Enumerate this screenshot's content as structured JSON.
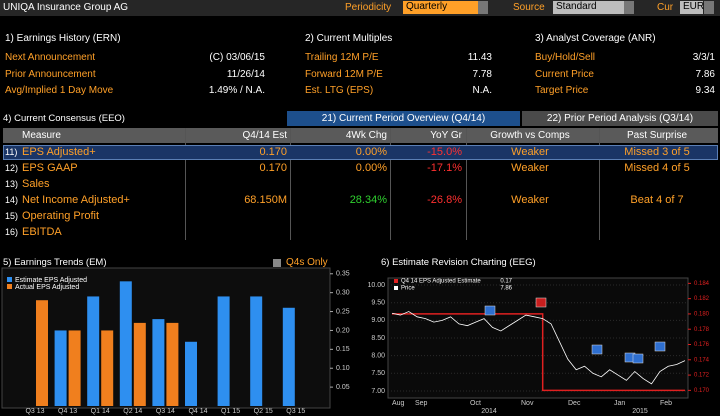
{
  "header": {
    "title": "UNIQA Insurance Group AG",
    "periodicity_label": "Periodicity",
    "periodicity": "Quarterly",
    "source_label": "Source",
    "source": "Standard",
    "cur_label": "Cur",
    "cur": "EUR"
  },
  "panels": [
    {
      "title": "1) Earnings History (ERN)",
      "rows": [
        [
          "Next Announcement",
          "(C) 03/06/15"
        ],
        [
          "Prior Announcement",
          "11/26/14"
        ],
        [
          "Avg/Implied 1 Day Move",
          "1.49% / N.A."
        ]
      ]
    },
    {
      "title": "2) Current Multiples",
      "rows": [
        [
          "Trailing 12M P/E",
          "11.43"
        ],
        [
          "Forward 12M P/E",
          "7.78"
        ],
        [
          "Est. LTG (EPS)",
          "N.A."
        ]
      ]
    },
    {
      "title": "3) Analyst Coverage (ANR)",
      "rows": [
        [
          "Buy/Hold/Sell",
          "3/3/1"
        ],
        [
          "Current Price",
          "7.86"
        ],
        [
          "Target Price",
          "9.34"
        ]
      ]
    }
  ],
  "consensus": {
    "title": "4) Current Consensus (EEO)",
    "tabs": [
      "21) Current Period Overview (Q4/14)",
      "22) Prior Period Analysis (Q3/14)"
    ],
    "columns": [
      "Measure",
      "Q4/14 Est",
      "4Wk Chg",
      "YoY Gr",
      "Growth vs Comps",
      "Past Surprise"
    ],
    "rows": [
      {
        "num": "11)",
        "measure": "EPS Adjusted+",
        "est": "0.170",
        "chg": "0.00%",
        "yoy": "-15.0%",
        "comps": "Weaker",
        "surprise": "Missed 3 of 5"
      },
      {
        "num": "12)",
        "measure": "EPS GAAP",
        "est": "0.170",
        "chg": "0.00%",
        "yoy": "-17.1%",
        "comps": "Weaker",
        "surprise": "Missed 4 of 5"
      },
      {
        "num": "13)",
        "measure": "Sales"
      },
      {
        "num": "14)",
        "measure": "Net Income Adjusted+",
        "est": "68.150M",
        "chg": "28.34%",
        "yoy": "-26.8%",
        "comps": "Weaker",
        "surprise": "Beat 4 of 7"
      },
      {
        "num": "15)",
        "measure": "Operating Profit"
      },
      {
        "num": "16)",
        "measure": "EBITDA"
      }
    ]
  },
  "earnings_trends": {
    "type": "bar",
    "title": "5) Earnings Trends (EM)",
    "toggle": "Q4s Only",
    "categories": [
      "Q3 13",
      "Q4 13",
      "Q1 14",
      "Q2 14",
      "Q3 14",
      "Q4 14",
      "Q1 15",
      "Q2 15",
      "Q3 15"
    ],
    "series": [
      {
        "name": "Estimate EPS Adjusted",
        "color": "#2e8ff0",
        "values": [
          null,
          0.2,
          0.29,
          0.33,
          0.23,
          0.17,
          0.29,
          0.29,
          0.26
        ]
      },
      {
        "name": "Actual EPS Adjusted",
        "color": "#f07f1e",
        "values": [
          0.28,
          0.2,
          0.2,
          0.22,
          0.22,
          null,
          null,
          null,
          null
        ]
      }
    ],
    "ylim": [
      0,
      0.36
    ],
    "yticks": [
      0.05,
      {
        "value": 0.1,
        "label": "0.10"
      },
      0.15,
      {
        "value": 0.2,
        "label": "0.20"
      },
      0.25,
      {
        "value": 0.3,
        "label": "0.30"
      },
      0.35
    ]
  },
  "revision": {
    "type": "line",
    "title": "6) Estimate Revision Charting (EEG)",
    "months": [
      "Aug",
      "Sep",
      "Oct",
      "Nov",
      "Dec",
      "Jan",
      "Feb"
    ],
    "years": [
      "2014",
      "2015"
    ],
    "series": [
      {
        "name": "Q4 14 EPS Adjusted Estimate",
        "last": "0.17",
        "color": "#e02020",
        "axis": "y2",
        "values": [
          0.18,
          0.18,
          0.18,
          0.18,
          0.18,
          0.18,
          0.18,
          0.18,
          0.18,
          0.18,
          0.18,
          0.18,
          0.18,
          0.18,
          0.18,
          0.18,
          0.18,
          0.18,
          0.17,
          0.17,
          0.17,
          0.17,
          0.17,
          0.17,
          0.17,
          0.17,
          0.17,
          0.17,
          0.17,
          0.17,
          0.17,
          0.17,
          0.17,
          0.17,
          0.17,
          0.17
        ]
      },
      {
        "name": "Price",
        "last": "7.86",
        "color": "#ffffff",
        "values": [
          9.2,
          9.15,
          9.25,
          9.1,
          9.05,
          8.95,
          9.0,
          9.1,
          8.9,
          8.85,
          8.95,
          9.05,
          8.8,
          8.7,
          8.85,
          9.0,
          9.15,
          9.1,
          9.05,
          8.9,
          8.4,
          7.9,
          7.6,
          7.7,
          7.5,
          7.4,
          7.6,
          7.45,
          7.3,
          7.55,
          7.35,
          7.2,
          7.55,
          7.7,
          7.75,
          7.86
        ]
      }
    ],
    "ylim": [
      6.8,
      10.2
    ],
    "yticks": [
      {
        "value": 7,
        "label": "7.00"
      },
      {
        "value": 7.5,
        "label": "7.50"
      },
      {
        "value": 8,
        "label": "8.00"
      },
      {
        "value": 8.5,
        "label": "8.50"
      },
      {
        "value": 9,
        "label": "9.00"
      },
      {
        "value": 9.5,
        "label": "9.50"
      },
      {
        "value": 10,
        "label": "10.00"
      }
    ],
    "y2lim": [
      0.169,
      0.1847
    ],
    "y2ticks": [
      {
        "value": 0.17,
        "label": "0.170"
      },
      {
        "value": 0.172,
        "label": "0.172"
      },
      {
        "value": 0.174,
        "label": "0.174"
      },
      {
        "value": 0.176,
        "label": "0.176"
      },
      {
        "value": 0.178,
        "label": "0.178"
      },
      {
        "value": 0.18,
        "label": "0.180"
      },
      {
        "value": 0.182,
        "label": "0.182"
      },
      {
        "value": 0.184,
        "label": "0.184"
      }
    ]
  }
}
